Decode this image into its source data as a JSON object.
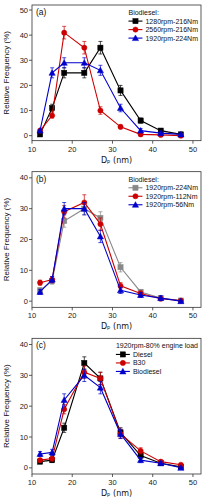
{
  "chart_data": [
    {
      "type": "line",
      "title": "Biodiesel:",
      "xlabel": "Dₚ (nm)",
      "ylabel": "Relative Frequency (%)",
      "annotations": [
        "(a)"
      ],
      "legend": "upper right",
      "xlim": [
        10,
        52
      ],
      "xticks": [
        10,
        20,
        30,
        40,
        50
      ],
      "ylim": [
        -2,
        52
      ],
      "yticks": [
        0,
        10,
        20,
        30,
        40,
        50
      ],
      "series": [
        {
          "name": "1280rpm-216Nm",
          "color": "#000000",
          "marker": "square",
          "x": [
            12,
            15,
            18,
            23,
            27,
            32,
            37,
            42,
            47
          ],
          "values": [
            0.5,
            11,
            25,
            25,
            35,
            18,
            6,
            2,
            0.5
          ],
          "yerr": [
            0.5,
            1.5,
            2,
            2,
            2.5,
            2,
            1,
            0.8,
            0.4
          ]
        },
        {
          "name": "2560rpm-216Nm",
          "color": "#cc0000",
          "marker": "circle",
          "x": [
            12,
            15,
            18,
            23,
            27,
            32,
            37,
            42,
            47
          ],
          "values": [
            2,
            8,
            41,
            35,
            10,
            3.5,
            0.5,
            0.3,
            0
          ],
          "yerr": [
            0.5,
            1,
            2.5,
            2.5,
            1.5,
            0.8,
            0.4,
            0.3,
            0.2
          ]
        },
        {
          "name": "1920rpm-224Nm",
          "color": "#0000cc",
          "marker": "triangle",
          "x": [
            12,
            15,
            18,
            23,
            27,
            32,
            37,
            42,
            47
          ],
          "values": [
            2,
            25,
            29,
            29,
            26,
            11,
            2,
            1,
            0.5
          ],
          "yerr": [
            0.5,
            2,
            2,
            2,
            2,
            1.5,
            0.8,
            0.5,
            0.3
          ]
        }
      ]
    },
    {
      "type": "line",
      "title": "Biodiesel:",
      "xlabel": "Dₚ (nm)",
      "ylabel": "Relative Frequency (%)",
      "annotations": [
        "(b)"
      ],
      "legend": "upper right",
      "xlim": [
        10,
        52
      ],
      "xticks": [
        10,
        20,
        30,
        40,
        50
      ],
      "ylim": [
        -2,
        42
      ],
      "yticks": [
        0,
        10,
        20,
        30,
        40
      ],
      "series": [
        {
          "name": "1920rpm-224Nm",
          "color": "#888888",
          "marker": "square",
          "x": [
            12,
            15,
            18,
            23,
            27,
            32,
            37,
            42,
            47
          ],
          "values": [
            3.5,
            6.5,
            26,
            30,
            27,
            11,
            3,
            1,
            0.2
          ],
          "yerr": [
            0.8,
            1,
            2,
            2,
            2,
            1.5,
            0.8,
            0.5,
            0.3
          ]
        },
        {
          "name": "1920rpm-112Nm",
          "color": "#cc0000",
          "marker": "circle",
          "x": [
            12,
            15,
            18,
            23,
            27,
            32,
            37,
            42,
            47
          ],
          "values": [
            6,
            7,
            29,
            32,
            25,
            5,
            2.5,
            0.8,
            0.2
          ],
          "yerr": [
            0.8,
            1,
            2,
            2.5,
            2,
            1,
            0.8,
            0.5,
            0.3
          ]
        },
        {
          "name": "1920rpm-56Nm",
          "color": "#0000cc",
          "marker": "triangle",
          "x": [
            12,
            15,
            18,
            23,
            27,
            32,
            37,
            42,
            47
          ],
          "values": [
            3,
            7,
            30,
            30,
            21,
            3.5,
            2,
            1,
            0
          ],
          "yerr": [
            0.8,
            1,
            2,
            2,
            2,
            1,
            0.8,
            0.8,
            0.3
          ]
        }
      ]
    },
    {
      "type": "line",
      "title": "1920rpm-80% engine load",
      "xlabel": "Dₚ (nm)",
      "ylabel": "Relative Frequency (%)",
      "annotations": [
        "(c)"
      ],
      "legend": "upper right",
      "xlim": [
        10,
        52
      ],
      "xticks": [
        10,
        20,
        30,
        40,
        50
      ],
      "ylim": [
        -2,
        42
      ],
      "yticks": [
        0,
        10,
        20,
        30,
        40
      ],
      "series": [
        {
          "name": "Diesel",
          "color": "#000000",
          "marker": "square",
          "x": [
            12,
            15,
            18,
            23,
            27,
            32,
            37,
            42,
            47
          ],
          "values": [
            2,
            2.5,
            13,
            34,
            29,
            11.5,
            4,
            1.5,
            0.3
          ],
          "yerr": [
            0.5,
            0.8,
            1.5,
            2,
            2,
            1.5,
            1,
            0.5,
            0.3
          ]
        },
        {
          "name": "B30",
          "color": "#cc0000",
          "marker": "circle",
          "x": [
            12,
            15,
            18,
            23,
            27,
            32,
            37,
            42,
            47
          ],
          "values": [
            2.5,
            3,
            19,
            31,
            29,
            11,
            5.5,
            2,
            1
          ],
          "yerr": [
            0.5,
            0.8,
            1.5,
            2,
            2,
            1.5,
            1,
            0.5,
            0.3
          ]
        },
        {
          "name": "Biodiesel",
          "color": "#0000cc",
          "marker": "triangle",
          "x": [
            12,
            15,
            18,
            23,
            27,
            32,
            37,
            42,
            47
          ],
          "values": [
            4.5,
            5,
            22,
            30,
            26,
            11,
            2.5,
            1.5,
            0
          ],
          "yerr": [
            0.8,
            1,
            2,
            2,
            2,
            1.5,
            0.8,
            0.5,
            0.3
          ]
        }
      ]
    }
  ]
}
